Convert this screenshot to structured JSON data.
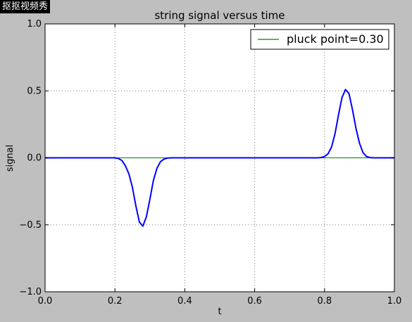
{
  "watermark": "抠抠视频秀",
  "colors": {
    "background": "#bfbfbf",
    "plot_area": "#ffffff",
    "signal_line": "#0000ff",
    "legend_line": "#008000",
    "grid": "#808080"
  },
  "chart_data": {
    "type": "line",
    "title": "string signal versus time",
    "xlabel": "t",
    "ylabel": "signal",
    "xlim": [
      0.0,
      1.0
    ],
    "ylim": [
      -1.0,
      1.0
    ],
    "xticks": [
      "0.0",
      "0.2",
      "0.4",
      "0.6",
      "0.8",
      "1.0"
    ],
    "yticks": [
      "−1.0",
      "−0.5",
      "0.0",
      "0.5",
      "1.0"
    ],
    "grid": true,
    "legend_position": "top-right",
    "series": [
      {
        "name": "",
        "color": "#0000ff",
        "x": [
          0.0,
          0.1,
          0.2,
          0.21,
          0.22,
          0.23,
          0.24,
          0.25,
          0.26,
          0.27,
          0.28,
          0.29,
          0.3,
          0.31,
          0.32,
          0.33,
          0.34,
          0.35,
          0.36,
          0.4,
          0.6,
          0.78,
          0.79,
          0.8,
          0.81,
          0.82,
          0.83,
          0.84,
          0.85,
          0.86,
          0.87,
          0.88,
          0.89,
          0.9,
          0.91,
          0.92,
          0.93,
          0.94,
          1.0
        ],
        "y": [
          0.0,
          0.0,
          0.0,
          -0.005,
          -0.02,
          -0.06,
          -0.12,
          -0.22,
          -0.36,
          -0.48,
          -0.51,
          -0.44,
          -0.31,
          -0.17,
          -0.08,
          -0.03,
          -0.01,
          -0.002,
          0.0,
          0.0,
          0.0,
          0.0,
          0.002,
          0.01,
          0.03,
          0.08,
          0.18,
          0.32,
          0.45,
          0.51,
          0.48,
          0.36,
          0.22,
          0.11,
          0.04,
          0.01,
          0.002,
          0.0,
          0.0
        ]
      },
      {
        "name": "pluck point=0.30",
        "color": "#008000",
        "x": [
          0.0,
          1.0
        ],
        "y": [
          0.0,
          0.0
        ]
      }
    ]
  }
}
